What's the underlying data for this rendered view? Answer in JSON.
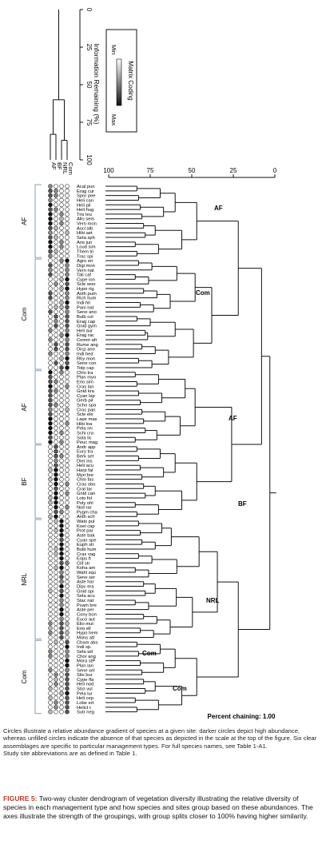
{
  "site_codes": [
    "AF",
    "BF",
    "NRL",
    "Com"
  ],
  "species": [
    "Acal pun",
    "Erag cur",
    "Spor pee",
    "Heli can",
    "Heli pil",
    "Heli hug",
    "Tris leu",
    "Allo sem",
    "Vern mon",
    "Ascl alb",
    "Hibi aet",
    "Seta sph",
    "Aris jun",
    "Loud sim",
    "Them tri",
    "Trac spi",
    "Agro eri",
    "Digi mon",
    "Vern nat",
    "Tali caf",
    "Cype ion",
    "Scle woo",
    "Hypo rig",
    "Anth pum",
    "Rich hum",
    "Indi hil",
    "Pani nat",
    "Sene ano",
    "Bulb col",
    "Erag cap",
    "Gnid gym",
    "Heli aur",
    "Erag rac",
    "Comm afr",
    "Rume ang",
    "Dicp ano",
    "Indi hed",
    "Rhy mon",
    "Sene con",
    "Tolp cap",
    "Chlo tra",
    "Plan myo",
    "Erio sim",
    "Cras lan",
    "Gnid kra",
    "Cyan lap",
    "Gerb pil",
    "Scho spa",
    "Croc pan",
    "Scle ele",
    "Lape mas",
    "Hibi loa",
    "Pela rei",
    "Schi cra",
    "Sola lic",
    "Peuc mag",
    "Andr app",
    "Eury tra",
    "Berk set",
    "Dier ins",
    "Heli acu",
    "Harp fal",
    "Myri bre",
    "Chlo fas",
    "Cras obo",
    "Crat tar",
    "Gnid can",
    "Loto fol",
    "Poly ohl",
    "Noli rar",
    "Pygm cha",
    "Anth sch",
    "Wats pul",
    "Koel cap",
    "Prot par",
    "Aste bak",
    "Cyan spe",
    "Euph str",
    "Bulb hum",
    "Cras vag",
    "Erips fl",
    "Clif str",
    "Koha am",
    "Wahl squ",
    "Sene ser",
    "Aste har",
    "Dipc era",
    "Gnid spi",
    "Sela acu",
    "Stac nat",
    "Psam bre",
    "Aste per",
    "Cony bon",
    "Euco aut",
    "Elio mut",
    "Erio ell",
    "Hypo hem",
    "Mons att",
    "Cham abs",
    "Indi sp.",
    "Sela wil",
    "Chor ang",
    "Mora stP",
    "Plan lan",
    "Sene sel",
    "Sile bur",
    "Cype fla",
    "Heli nod",
    "Stro vul",
    "Pela lur",
    "Heli cep",
    "Lobe ert",
    "Helict t",
    "Sutr neg"
  ],
  "legend": {
    "title": "Matrix Coding",
    "min_label": "Min",
    "max_label": "Max"
  },
  "info_axis": {
    "title": "Information Remaining (%)",
    "ticks": [
      "0",
      "25",
      "50",
      "75",
      "100"
    ]
  },
  "similarity_axis": {
    "ticks": [
      "100",
      "75",
      "50",
      "25",
      "0"
    ]
  },
  "species_groups": [
    {
      "label": "AF"
    },
    {
      "label": "Com"
    },
    {
      "label": "AF"
    },
    {
      "label": "BF"
    },
    {
      "label": "NRL"
    },
    {
      "label": "Com"
    }
  ],
  "tree_labels": [
    {
      "label": "AF"
    },
    {
      "label": "Com"
    },
    {
      "label": "AF"
    },
    {
      "label": "BF"
    },
    {
      "label": "NRL"
    },
    {
      "label": "Com"
    },
    {
      "label": "Com"
    }
  ],
  "percent_chaining": "Percent chaining: 1.00",
  "notes": [
    "Circles illustrate a relative abundance gradient of species at a given site: darker circles depict high abundance, whereas unfilled circles indicate the absence of that species as depicted in the scale at the top of the figure. Six clear assemblages are specific to particular management types. For full species names, see Table 1-A1.",
    "Study site abbreviations are as defined in Table 1."
  ],
  "caption": {
    "label": "FIGURE 5:",
    "text": "Two-way cluster dendrogram of vegetation diversity illustrating the relative diversity of species in each management type and how species and sites group based on these abundances. The axes illustrate the strength of the groupings, with group splits closer to 100% having higher similarity."
  },
  "colors": {
    "caption_label": "#c0392b",
    "line": "#111111",
    "bracket": "#8a9bb8"
  }
}
